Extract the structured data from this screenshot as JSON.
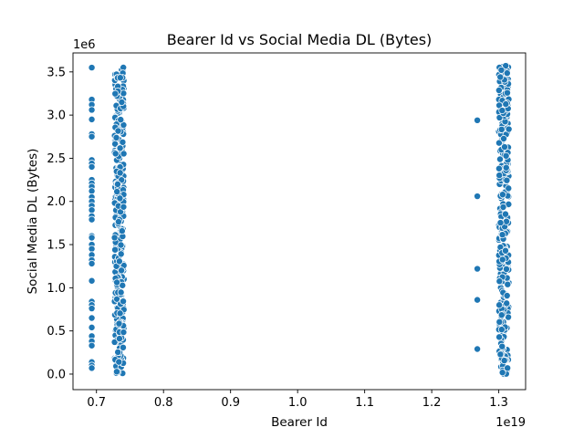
{
  "chart_data": {
    "type": "scatter",
    "title": "Bearer Id vs Social Media DL (Bytes)",
    "xlabel": "Bearer Id",
    "ylabel": "Social Media DL (Bytes)",
    "x_offset_text": "1e19",
    "y_offset_text": "1e6",
    "xlim": [
      0.665,
      1.34
    ],
    "ylim": [
      -0.18,
      3.72
    ],
    "x_ticks": [
      0.7,
      0.8,
      0.9,
      1.0,
      1.1,
      1.2,
      1.3
    ],
    "x_tick_labels": [
      "0.7",
      "0.8",
      "0.9",
      "1.0",
      "1.1",
      "1.2",
      "1.3"
    ],
    "y_ticks": [
      0.0,
      0.5,
      1.0,
      1.5,
      2.0,
      2.5,
      3.0,
      3.5
    ],
    "y_tick_labels": [
      "0.0",
      "0.5",
      "1.0",
      "1.5",
      "2.0",
      "2.5",
      "3.0",
      "3.5"
    ],
    "grid": false,
    "point_color": "#1f77b4",
    "clusters": [
      {
        "x": 0.693,
        "y": [
          3.55,
          3.18,
          3.12,
          3.06,
          2.95,
          2.78,
          2.75,
          2.48,
          2.44,
          2.4,
          2.25,
          2.21,
          2.17,
          2.12,
          2.05,
          2.0,
          1.95,
          1.9,
          1.83,
          1.79,
          1.6,
          1.58,
          1.5,
          1.45,
          1.38,
          1.32,
          1.28,
          1.08,
          0.84,
          0.8,
          0.76,
          0.65,
          0.54,
          0.44,
          0.38,
          0.33,
          0.14,
          0.1,
          0.07
        ]
      },
      {
        "x": 1.268,
        "y": [
          2.94,
          2.06,
          1.22,
          0.86,
          0.29
        ]
      }
    ],
    "dense_bands": [
      {
        "x_min": 0.727,
        "x_max": 0.741,
        "y_min": 0.0,
        "y_max": 3.58,
        "count": 340
      },
      {
        "x_min": 1.3,
        "x_max": 1.315,
        "y_min": 0.0,
        "y_max": 3.58,
        "count": 340
      }
    ]
  }
}
